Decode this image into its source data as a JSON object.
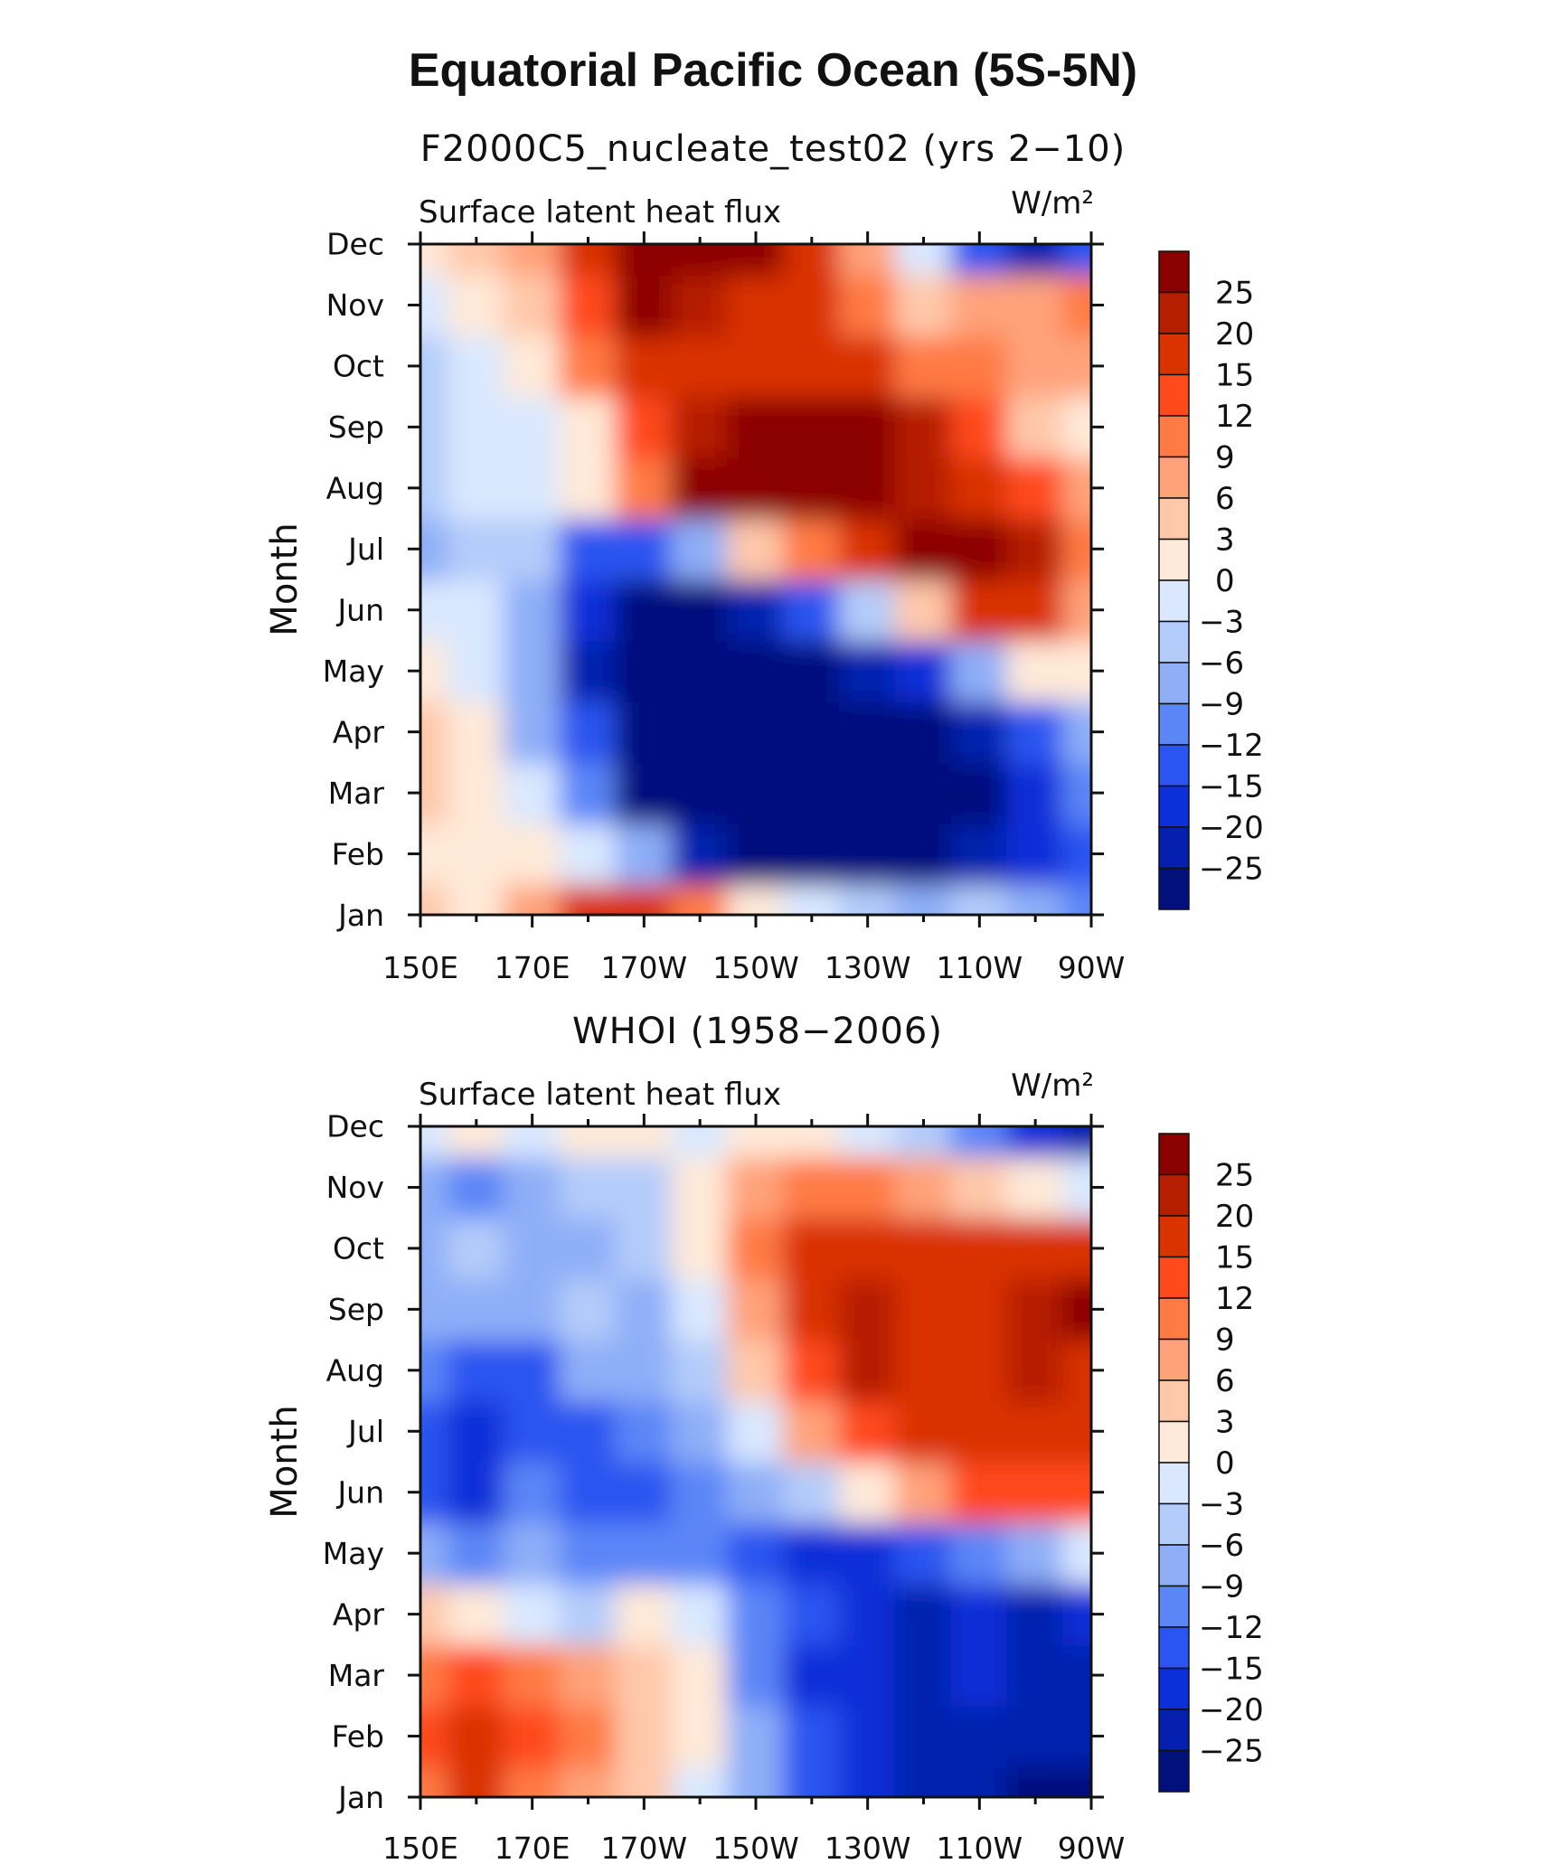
{
  "main_title": "Equatorial Pacific Ocean (5S-5N)",
  "chart_data": [
    {
      "type": "heatmap",
      "title": "F2000C5_nucleate_test02 (yrs 2−10)",
      "left_label": "Surface latent heat flux",
      "units": "W/m²",
      "ylabel": "Month",
      "xlabel": "",
      "x_ticks": [
        "150E",
        "170E",
        "170W",
        "150W",
        "130W",
        "110W",
        "90W"
      ],
      "y_ticks": [
        "Jan",
        "Feb",
        "Mar",
        "Apr",
        "May",
        "Jun",
        "Jul",
        "Aug",
        "Sep",
        "Oct",
        "Nov",
        "Dec"
      ],
      "colorbar_levels": [
        "25",
        "20",
        "15",
        "12",
        "9",
        "6",
        "3",
        "0",
        "−3",
        "−6",
        "−9",
        "−12",
        "−15",
        "−20",
        "−25"
      ],
      "colorbar_colors": [
        "#8b0000",
        "#b51e00",
        "#d93300",
        "#ff4a1c",
        "#ff7a45",
        "#ffa27a",
        "#ffc8aa",
        "#ffe9d8",
        "#d9e8ff",
        "#b4ccfa",
        "#8eaef8",
        "#5b86f7",
        "#2a55f0",
        "#0b2fd8",
        "#0520ae",
        "#00117c"
      ],
      "grid_lon": [
        "150E",
        "160E",
        "170E",
        "180",
        "170W",
        "160W",
        "150W",
        "140W",
        "130W",
        "120W",
        "110W",
        "100W",
        "90W"
      ],
      "grid_month": [
        "Jan",
        "Feb",
        "Mar",
        "Apr",
        "May",
        "Jun",
        "Jul",
        "Aug",
        "Sep",
        "Oct",
        "Nov",
        "Dec"
      ],
      "values": [
        [
          4,
          2,
          8,
          18,
          20,
          10,
          3,
          0,
          -3,
          -6,
          -3,
          -6,
          -9
        ],
        [
          3,
          3,
          2,
          -2,
          -8,
          -20,
          -26,
          -28,
          -28,
          -26,
          -22,
          -15,
          -12
        ],
        [
          4,
          3,
          -2,
          -10,
          -26,
          -30,
          -30,
          -30,
          -30,
          -30,
          -28,
          -15,
          -9
        ],
        [
          4,
          1,
          -6,
          -14,
          -26,
          -30,
          -30,
          -30,
          -28,
          -26,
          -20,
          -12,
          -6
        ],
        [
          3,
          -1,
          -8,
          -20,
          -28,
          -30,
          -30,
          -28,
          -24,
          -16,
          -6,
          2,
          3
        ],
        [
          0,
          -2,
          -6,
          -18,
          -26,
          -26,
          -22,
          -14,
          -5,
          6,
          16,
          18,
          8
        ],
        [
          -6,
          -3,
          -3,
          -14,
          -14,
          -6,
          4,
          12,
          20,
          26,
          28,
          24,
          12
        ],
        [
          -3,
          -2,
          -1,
          1,
          12,
          28,
          28,
          28,
          26,
          24,
          20,
          14,
          8
        ],
        [
          -3,
          -2,
          0,
          3,
          14,
          24,
          28,
          28,
          26,
          22,
          14,
          6,
          3
        ],
        [
          -3,
          0,
          3,
          10,
          16,
          18,
          20,
          20,
          16,
          12,
          12,
          9,
          9
        ],
        [
          -2,
          1,
          6,
          14,
          26,
          24,
          20,
          16,
          12,
          6,
          9,
          9,
          12
        ],
        [
          3,
          5,
          8,
          16,
          30,
          30,
          26,
          18,
          9,
          0,
          -14,
          -20,
          -12
        ]
      ]
    },
    {
      "type": "heatmap",
      "title": "WHOI (1958−2006)",
      "left_label": "Surface latent heat flux",
      "units": "W/m²",
      "ylabel": "Month",
      "xlabel": "",
      "x_ticks": [
        "150E",
        "170E",
        "170W",
        "150W",
        "130W",
        "110W",
        "90W"
      ],
      "y_ticks": [
        "Jan",
        "Feb",
        "Mar",
        "Apr",
        "May",
        "Jun",
        "Jul",
        "Aug",
        "Sep",
        "Oct",
        "Nov",
        "Dec"
      ],
      "colorbar_levels": [
        "25",
        "20",
        "15",
        "12",
        "9",
        "6",
        "3",
        "0",
        "−3",
        "−6",
        "−9",
        "−12",
        "−15",
        "−20",
        "−25"
      ],
      "colorbar_colors": [
        "#8b0000",
        "#b51e00",
        "#d93300",
        "#ff4a1c",
        "#ff7a45",
        "#ffa27a",
        "#ffc8aa",
        "#ffe9d8",
        "#d9e8ff",
        "#b4ccfa",
        "#8eaef8",
        "#5b86f7",
        "#2a55f0",
        "#0b2fd8",
        "#0520ae",
        "#00117c"
      ],
      "grid_lon": [
        "150E",
        "160E",
        "170E",
        "180",
        "170W",
        "160W",
        "150W",
        "140W",
        "130W",
        "120W",
        "110W",
        "100W",
        "90W"
      ],
      "grid_month": [
        "Jan",
        "Feb",
        "Mar",
        "Apr",
        "May",
        "Jun",
        "Jul",
        "Aug",
        "Sep",
        "Oct",
        "Nov",
        "Dec"
      ],
      "values": [
        [
          12,
          16,
          12,
          9,
          6,
          0,
          -6,
          -12,
          -18,
          -20,
          -22,
          -26,
          -28
        ],
        [
          14,
          16,
          14,
          12,
          6,
          1,
          -6,
          -14,
          -18,
          -20,
          -22,
          -24,
          -24
        ],
        [
          12,
          14,
          12,
          9,
          6,
          3,
          -9,
          -16,
          -18,
          -20,
          -18,
          -22,
          -20
        ],
        [
          6,
          3,
          0,
          -3,
          1,
          0,
          -9,
          -14,
          -16,
          -20,
          -18,
          -20,
          -16
        ],
        [
          -6,
          -9,
          -6,
          -9,
          -9,
          -9,
          -12,
          -16,
          -16,
          -14,
          -10,
          -6,
          0
        ],
        [
          -12,
          -15,
          -9,
          -12,
          -12,
          -9,
          -6,
          -3,
          3,
          9,
          15,
          15,
          15
        ],
        [
          -12,
          -16,
          -12,
          -12,
          -9,
          -6,
          0,
          9,
          15,
          18,
          18,
          20,
          20
        ],
        [
          -9,
          -12,
          -12,
          -6,
          -6,
          -3,
          6,
          15,
          22,
          18,
          20,
          22,
          20
        ],
        [
          -6,
          -6,
          -6,
          -3,
          -6,
          0,
          9,
          18,
          22,
          18,
          18,
          22,
          26
        ],
        [
          -6,
          -3,
          -6,
          -6,
          -3,
          3,
          12,
          16,
          18,
          18,
          16,
          18,
          16
        ],
        [
          -6,
          -9,
          -6,
          -3,
          -3,
          3,
          9,
          12,
          12,
          9,
          6,
          3,
          0
        ],
        [
          0,
          3,
          0,
          3,
          3,
          0,
          3,
          3,
          0,
          -3,
          -9,
          -15,
          -22
        ]
      ]
    }
  ]
}
